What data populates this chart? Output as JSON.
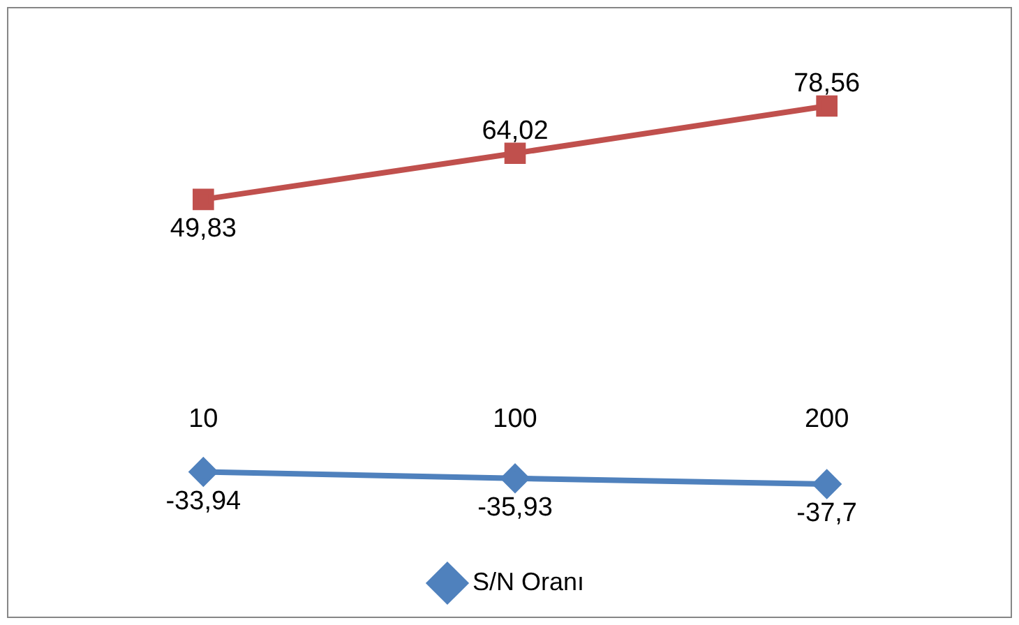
{
  "chart_data": {
    "type": "line",
    "categories": [
      "10",
      "100",
      "200"
    ],
    "series": [
      {
        "color": "#c0504d",
        "marker": "square",
        "values": [
          49.83,
          64.02,
          78.56
        ],
        "value_labels": [
          "49,83",
          "64,02",
          "78,56"
        ]
      },
      {
        "name": "S/N Oranı",
        "color": "#4f81bd",
        "marker": "diamond",
        "values": [
          -33.94,
          -35.93,
          -37.7
        ],
        "value_labels": [
          "-33,94",
          "-35,93",
          "-37,7"
        ]
      }
    ],
    "grid": false,
    "legend": "bottom",
    "tick_labels": "x"
  }
}
